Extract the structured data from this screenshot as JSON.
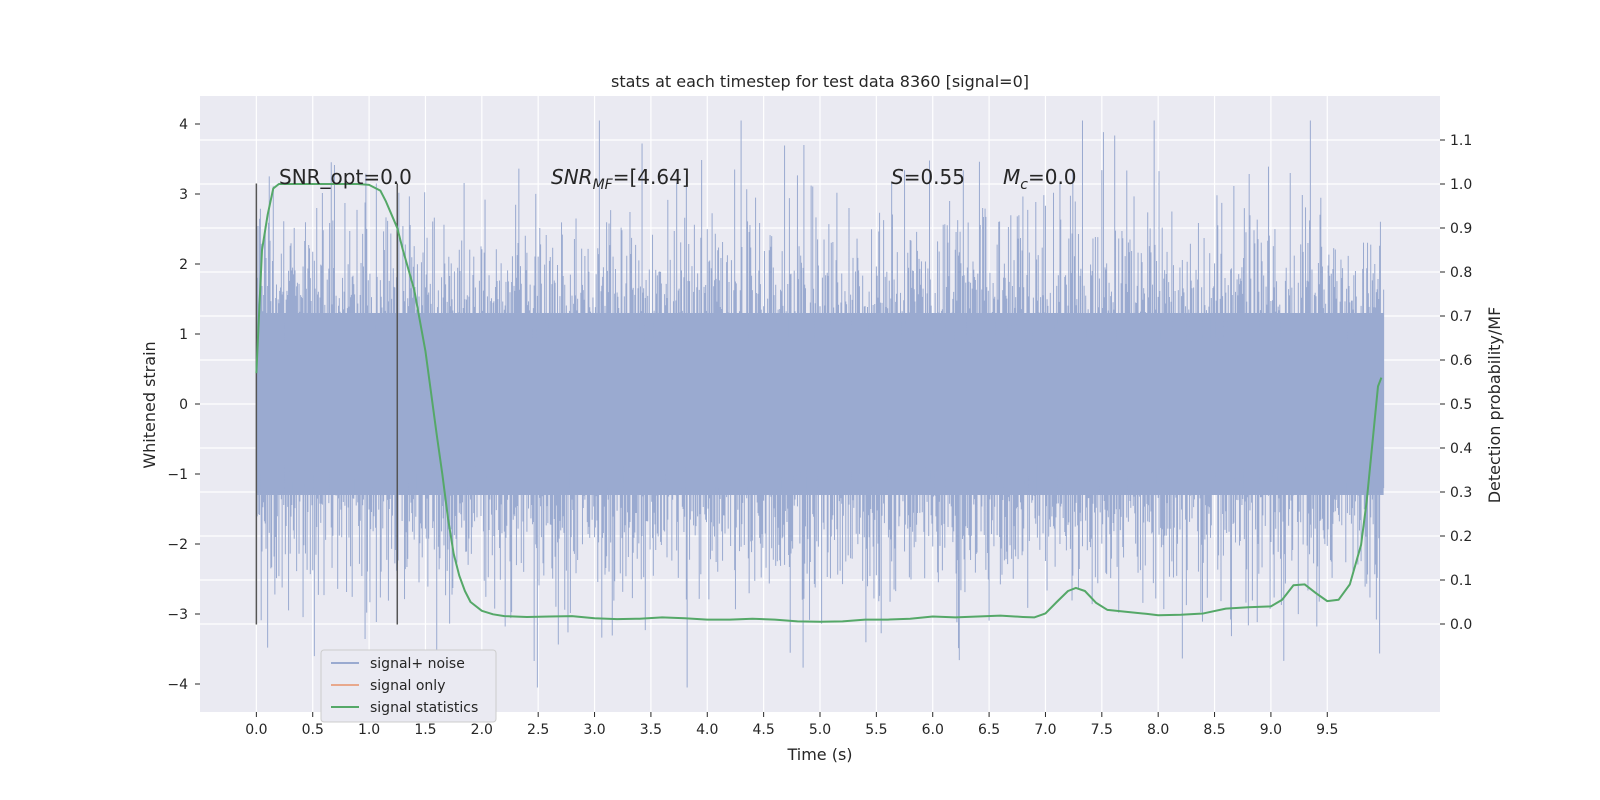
{
  "chart_data": {
    "type": "line",
    "title": "stats at each timestep for test data 8360 [signal=0]",
    "xlabel": "Time (s)",
    "ylabel_left": "Whitened strain",
    "ylabel_right": "Detection probability/MF",
    "xlim": [
      -0.5,
      10.5
    ],
    "ylim_left": [
      -4.4,
      4.4
    ],
    "ylim_right": [
      -0.2,
      1.2
    ],
    "x_ticks": [
      "0.0",
      "0.5",
      "1.0",
      "1.5",
      "2.0",
      "2.5",
      "3.0",
      "3.5",
      "4.0",
      "4.5",
      "5.0",
      "5.5",
      "6.0",
      "6.5",
      "7.0",
      "7.5",
      "8.0",
      "8.5",
      "9.0",
      "9.5"
    ],
    "y_ticks_left": [
      "4",
      "3",
      "2",
      "1",
      "0",
      "−1",
      "−2",
      "−3",
      "−4"
    ],
    "y_ticks_right": [
      "1.1",
      "1.0",
      "0.9",
      "0.8",
      "0.7",
      "0.6",
      "0.5",
      "0.4",
      "0.3",
      "0.2",
      "0.1",
      "0.0"
    ],
    "grid": true,
    "legend_position": "lower-left",
    "colors": {
      "background": "#eaeaf2",
      "grid": "#ffffff",
      "noise": "#9aaad0",
      "signal_only": "#e8a88c",
      "statistics": "#55a868",
      "marker": "#555555"
    },
    "annotations": {
      "snr_opt": "SNR_opt=0.0",
      "snr_mf_main": "SNR",
      "snr_mf_sub": "MF",
      "snr_mf_value": "=[4.64]",
      "s_main": "S",
      "s_value": "=0.55",
      "mc_main": "M",
      "mc_sub": "c",
      "mc_value": "=0.0"
    },
    "markers": [
      {
        "x": 0.0,
        "y_range": [
          -3.15,
          3.15
        ]
      },
      {
        "x": 1.25,
        "y_range": [
          -3.15,
          3.15
        ]
      }
    ],
    "series": [
      {
        "name": "signal+ noise",
        "style": "dense-noise",
        "x_range": [
          0.0,
          10.0
        ],
        "core_band": [
          -1.3,
          1.3
        ],
        "spike_range": [
          -4.05,
          4.05
        ]
      },
      {
        "name": "signal only",
        "x": [
          0.0,
          10.0
        ],
        "y": [
          0.0,
          0.0
        ]
      },
      {
        "name": "signal statistics",
        "x": [
          0.0,
          0.05,
          0.1,
          0.15,
          0.2,
          0.3,
          0.4,
          0.5,
          0.6,
          0.7,
          0.8,
          0.9,
          1.0,
          1.1,
          1.15,
          1.2,
          1.25,
          1.3,
          1.4,
          1.5,
          1.6,
          1.65,
          1.7,
          1.75,
          1.8,
          1.85,
          1.9,
          2.0,
          2.1,
          2.2,
          2.4,
          2.6,
          2.8,
          3.0,
          3.2,
          3.4,
          3.6,
          3.8,
          4.0,
          4.2,
          4.4,
          4.6,
          4.8,
          5.0,
          5.2,
          5.4,
          5.6,
          5.8,
          6.0,
          6.2,
          6.4,
          6.6,
          6.8,
          6.9,
          7.0,
          7.1,
          7.2,
          7.27,
          7.35,
          7.45,
          7.55,
          7.7,
          7.9,
          8.0,
          8.2,
          8.4,
          8.6,
          8.8,
          9.0,
          9.1,
          9.2,
          9.3,
          9.4,
          9.5,
          9.6,
          9.7,
          9.8,
          9.85,
          9.9,
          9.95,
          9.98
        ],
        "y": [
          0.57,
          0.85,
          0.93,
          0.99,
          1.0,
          1.0,
          1.0,
          1.0,
          1.0,
          1.0,
          1.0,
          1.0,
          0.998,
          0.985,
          0.96,
          0.93,
          0.9,
          0.85,
          0.76,
          0.62,
          0.43,
          0.34,
          0.24,
          0.16,
          0.11,
          0.075,
          0.05,
          0.03,
          0.022,
          0.018,
          0.016,
          0.017,
          0.018,
          0.013,
          0.011,
          0.012,
          0.015,
          0.013,
          0.01,
          0.01,
          0.012,
          0.01,
          0.006,
          0.005,
          0.006,
          0.01,
          0.01,
          0.012,
          0.017,
          0.015,
          0.017,
          0.019,
          0.016,
          0.015,
          0.024,
          0.05,
          0.075,
          0.082,
          0.075,
          0.048,
          0.032,
          0.028,
          0.023,
          0.02,
          0.021,
          0.024,
          0.035,
          0.038,
          0.04,
          0.055,
          0.088,
          0.09,
          0.07,
          0.052,
          0.055,
          0.09,
          0.18,
          0.28,
          0.41,
          0.54,
          0.56
        ]
      }
    ]
  }
}
